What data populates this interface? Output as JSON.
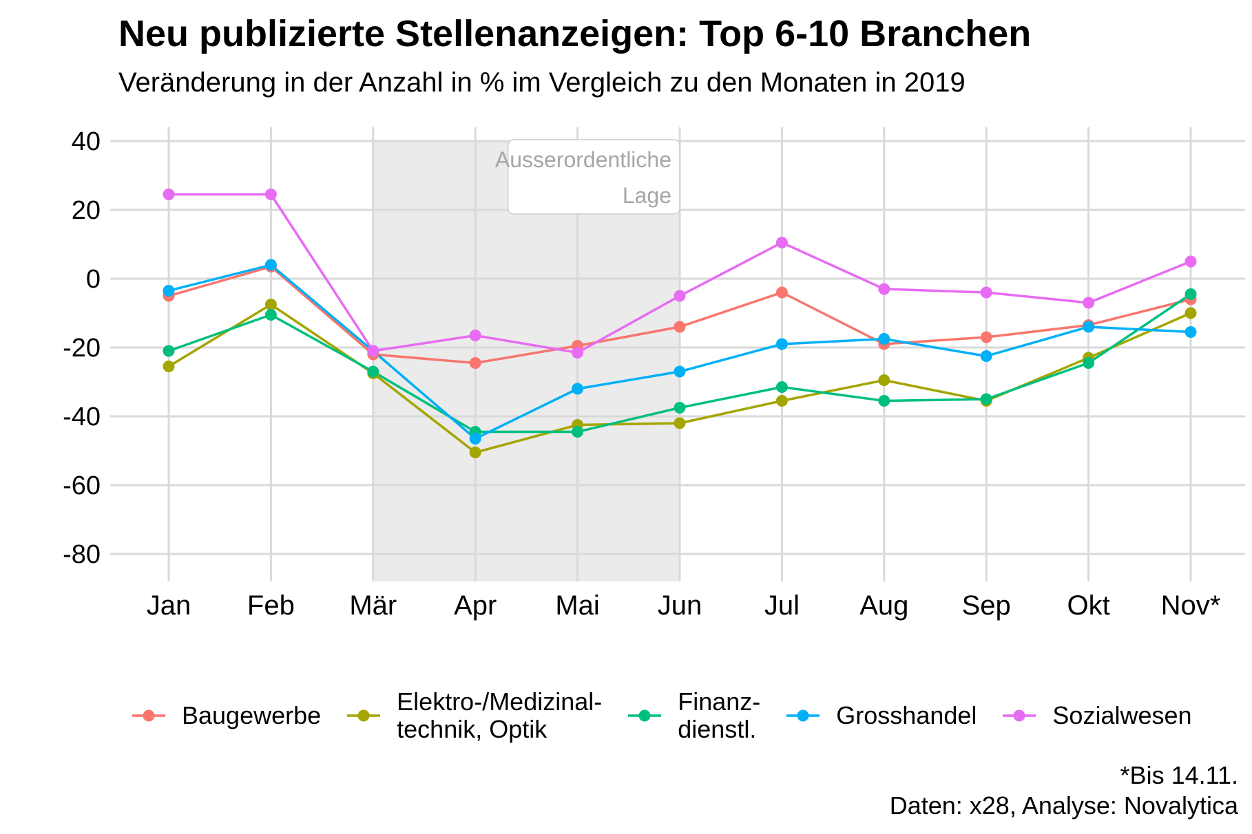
{
  "chart_data": {
    "type": "line",
    "title": "Neu publizierte Stellenanzeigen: Top 6-10 Branchen",
    "subtitle": "Veränderung in der Anzahl in % im Vergleich zu den Monaten in 2019",
    "xlabel": "",
    "ylabel": "",
    "categories": [
      "Jan",
      "Feb",
      "Mär",
      "Apr",
      "Mai",
      "Jun",
      "Jul",
      "Aug",
      "Sep",
      "Okt",
      "Nov*"
    ],
    "ylim": [
      -88,
      44
    ],
    "yticks": [
      40,
      20,
      0,
      -20,
      -40,
      -60,
      -80
    ],
    "grid": true,
    "legend_position": "bottom",
    "shaded_region": {
      "from": "Mär",
      "to": "Jun",
      "label_lines": [
        "Ausserordentliche",
        "Lage"
      ]
    },
    "series": [
      {
        "name": "Baugewerbe",
        "color": "#F8766D",
        "values": [
          -5,
          3.5,
          -22,
          -24.5,
          -19.5,
          -14,
          -4,
          -19,
          -17,
          -13.5,
          -6
        ]
      },
      {
        "name": "Elektro-/Medizinal-\ntechnik, Optik",
        "color": "#A3A500",
        "values": [
          -25.5,
          -7.5,
          -27.5,
          -50.5,
          -42.5,
          -42,
          -35.5,
          -29.5,
          -35.5,
          -23,
          -10
        ]
      },
      {
        "name": "Finanz-\ndienstl.",
        "color": "#00BF7D",
        "values": [
          -21,
          -10.5,
          -27,
          -44.5,
          -44.5,
          -37.5,
          -31.5,
          -35.5,
          -35,
          -24.5,
          -4.5
        ]
      },
      {
        "name": "Grosshandel",
        "color": "#00B0F6",
        "values": [
          -3.5,
          4,
          -21,
          -46.5,
          -32,
          -27,
          -19,
          -17.5,
          -22.5,
          -14,
          -15.5
        ]
      },
      {
        "name": "Sozialwesen",
        "color": "#E76BF3",
        "values": [
          24.5,
          24.5,
          -21,
          -16.5,
          -21.5,
          -5,
          10.5,
          -3,
          -4,
          -7,
          5
        ]
      }
    ],
    "caption_lines": [
      "*Bis 14.11.",
      "Daten: x28, Analyse: Novalytica"
    ]
  }
}
